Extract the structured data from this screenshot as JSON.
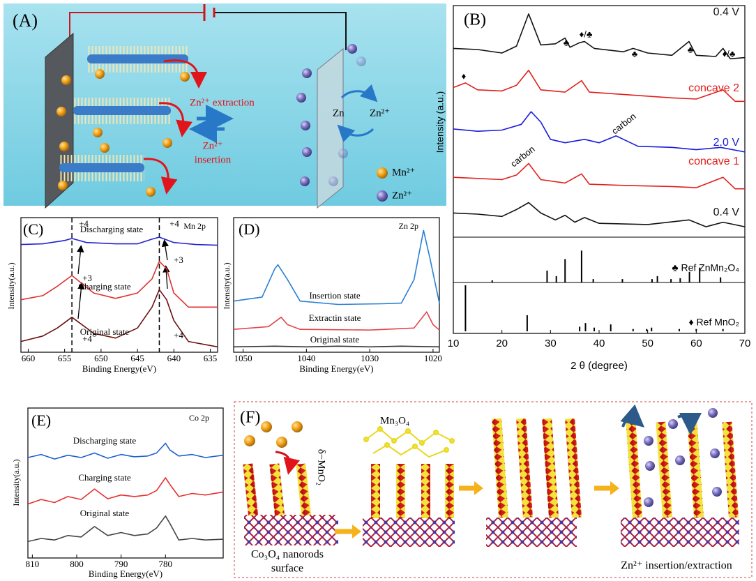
{
  "figure": {
    "panel_a": {
      "label": "(A)",
      "extraction": "Zn²⁺ extraction",
      "insertion_ion": "Zn²⁺",
      "insertion": "insertion",
      "zn": "Zn",
      "zn_ion": "Zn²⁺",
      "legend": [
        "Mn²⁺",
        "Zn²⁺"
      ]
    },
    "panel_f": {
      "label": "(F)",
      "delta": "δ−MnO₂",
      "mn3o4": "Mn₃O₄",
      "substrate": [
        "Co₃O₄ nanorods",
        "surface"
      ],
      "process": "Zn²⁺ insertion/extraction"
    }
  },
  "chart_data": [
    {
      "type": "line",
      "label": "(B)",
      "xlabel": "2 θ (degree)",
      "ylabel": "Intensity (a.u.)",
      "xlim": [
        10,
        70
      ],
      "xticks": [
        10,
        20,
        30,
        40,
        50,
        60,
        70
      ],
      "ylim": [
        0,
        10
      ],
      "series": [
        {
          "name": "0.4 V",
          "color": "#111111",
          "x": [
            10,
            15,
            20,
            23,
            25.5,
            28,
            31,
            33,
            34,
            36,
            37,
            39,
            45,
            47,
            50,
            55,
            58.5,
            60,
            64,
            65.5,
            67,
            70
          ],
          "values": [
            8.2,
            8.15,
            8.0,
            8.3,
            9.7,
            8.35,
            8.4,
            8.65,
            8.25,
            8.45,
            8.5,
            8.2,
            8.05,
            8.2,
            8.0,
            7.9,
            8.5,
            7.9,
            7.85,
            8.2,
            7.75,
            7.8
          ]
        },
        {
          "name": "concave 2",
          "color": "#e0201b",
          "x": [
            10,
            12.5,
            15,
            20,
            23,
            25.5,
            28,
            33,
            36.4,
            38,
            45,
            55,
            60,
            65.5,
            68,
            70
          ],
          "values": [
            6.5,
            6.7,
            6.4,
            6.35,
            6.6,
            7.25,
            6.4,
            6.3,
            6.8,
            6.3,
            6.2,
            6.05,
            6.0,
            6.4,
            5.9,
            5.9
          ]
        },
        {
          "name": "2.0 V",
          "color": "#1a1adb",
          "x": [
            10,
            15,
            20,
            24,
            26,
            28,
            30,
            33,
            37,
            40,
            43.5,
            48,
            55,
            60,
            65,
            70
          ],
          "values": [
            4.7,
            4.6,
            4.65,
            4.9,
            5.45,
            5.0,
            4.25,
            4.1,
            4.25,
            4.1,
            4.4,
            3.95,
            3.9,
            3.8,
            3.9,
            3.7
          ]
        },
        {
          "name": "concave 1",
          "color": "#e0201b",
          "x": [
            10,
            15,
            20,
            23,
            25.5,
            28,
            33,
            36.4,
            38,
            45,
            55,
            60,
            65.5,
            68,
            70
          ],
          "values": [
            2.6,
            2.55,
            2.5,
            2.7,
            3.2,
            2.5,
            2.35,
            2.75,
            2.3,
            2.25,
            2.2,
            2.15,
            2.6,
            2.1,
            2.1
          ]
        },
        {
          "name": "0.4 V",
          "color": "#111111",
          "x": [
            10,
            15,
            20,
            23,
            25.5,
            28,
            31,
            33,
            35,
            37,
            40,
            50,
            58.5,
            62,
            65.5,
            70
          ],
          "values": [
            1.05,
            1.0,
            0.9,
            1.2,
            1.5,
            1.05,
            0.75,
            0.95,
            0.65,
            0.85,
            0.6,
            0.55,
            0.75,
            0.45,
            0.65,
            0.45
          ]
        }
      ],
      "annotations": [
        "♣",
        "♦/♣",
        "♣",
        "♣",
        "♦/♣",
        "♦",
        "carbon",
        "carbon"
      ],
      "reference_ylim": [
        0,
        100
      ],
      "references": [
        {
          "name": "♣ Ref ZnMn₂O₄",
          "color": "#000000",
          "x": [
            18,
            29.3,
            31.2,
            33,
            36.4,
            38.8,
            44.8,
            50.9,
            52,
            54.8,
            56.7,
            58.6,
            60.7,
            65
          ],
          "values": [
            5,
            28,
            15,
            55,
            75,
            8,
            8,
            8,
            15,
            8,
            10,
            25,
            35,
            12
          ]
        },
        {
          "name": "♦ Ref MnO₂",
          "color": "#000000",
          "x": [
            12.5,
            25.2,
            36,
            37.2,
            39,
            42.4,
            47,
            49.8,
            50.8,
            56.5,
            60,
            65.5
          ],
          "values": [
            100,
            35,
            10,
            18,
            8,
            15,
            5,
            5,
            8,
            5,
            5,
            5
          ]
        }
      ]
    },
    {
      "type": "line",
      "label": "(C)",
      "title": "Mn 2p",
      "xlabel": "Binding Energy(eV)",
      "ylabel": "Intensity(a.u.)",
      "xlim": [
        661,
        634
      ],
      "xticks": [
        660,
        655,
        650,
        645,
        640,
        635
      ],
      "ylim": [
        0,
        10
      ],
      "markers": [
        654,
        642
      ],
      "series": [
        {
          "name": "Discharging state",
          "color": "#2222cc",
          "x": [
            661,
            658,
            655,
            654,
            652,
            648,
            645,
            643,
            642,
            640,
            637,
            634
          ],
          "values": [
            8.0,
            8.05,
            8.3,
            8.45,
            8.15,
            8.05,
            8.05,
            8.4,
            8.55,
            8.15,
            8.0,
            7.95
          ]
        },
        {
          "name": "Charging state",
          "color": "#e03030",
          "x": [
            661,
            658,
            656,
            654,
            651,
            648,
            645,
            643,
            642,
            641,
            640,
            638,
            634
          ],
          "values": [
            3.9,
            4.2,
            4.9,
            5.7,
            4.4,
            4.0,
            4.4,
            5.45,
            6.75,
            6.2,
            4.4,
            3.35,
            3.35
          ]
        },
        {
          "name": "Original state",
          "color": "#6b1010",
          "x": [
            661,
            658,
            656,
            654,
            651,
            648,
            645,
            643,
            642,
            641,
            640,
            638,
            634
          ],
          "values": [
            0.8,
            1.2,
            1.8,
            2.6,
            1.4,
            1.05,
            1.8,
            3.35,
            4.65,
            3.9,
            2.35,
            0.8,
            0.4
          ]
        }
      ],
      "annotations": [
        "+4",
        "+4",
        "+3",
        "+3",
        "+4",
        "+4"
      ]
    },
    {
      "type": "line",
      "label": "(D)",
      "title": "Zn 2p",
      "xlabel": "Binding Energy(eV)",
      "ylabel": "Intensity(a.u.)",
      "xlim": [
        1051.5,
        1019
      ],
      "xticks": [
        1050,
        1040,
        1030,
        1020
      ],
      "ylim": [
        0,
        10
      ],
      "series": [
        {
          "name": "Insertion state",
          "color": "#2a7fd4",
          "x": [
            1051.5,
            1047,
            1045,
            1044.5,
            1043,
            1041,
            1035,
            1028,
            1025,
            1023,
            1021.5,
            1020.5,
            1019
          ],
          "values": [
            3.8,
            4.1,
            6.2,
            6.5,
            5.4,
            3.8,
            3.55,
            3.6,
            3.65,
            5.4,
            9.05,
            7.0,
            3.65
          ]
        },
        {
          "name": "Extractin state",
          "color": "#e0474c",
          "x": [
            1051.5,
            1046,
            1044,
            1043,
            1041,
            1030,
            1023,
            1021,
            1020,
            1019
          ],
          "values": [
            1.7,
            1.9,
            2.6,
            2.05,
            1.7,
            1.65,
            1.8,
            3.0,
            2.05,
            1.65
          ]
        },
        {
          "name": "Original state",
          "color": "#333333",
          "x": [
            1051.5,
            1045,
            1040,
            1035,
            1030,
            1025,
            1019
          ],
          "values": [
            0.4,
            0.45,
            0.4,
            0.45,
            0.4,
            0.45,
            0.4
          ]
        }
      ]
    },
    {
      "type": "line",
      "label": "(E)",
      "title": "Co 2p",
      "xlabel": "Binding Energy(eV)",
      "ylabel": "Intensity(a.u.)",
      "xlim": [
        811,
        767
      ],
      "xticks": [
        810,
        800,
        790,
        780
      ],
      "ylim": [
        0,
        10
      ],
      "series": [
        {
          "name": "Discharging state",
          "color": "#1f5fd0",
          "x": [
            811,
            808,
            805,
            802,
            799,
            796,
            793,
            790,
            787,
            784,
            782,
            780,
            779,
            777,
            774,
            771,
            767
          ],
          "values": [
            6.7,
            6.9,
            6.6,
            6.85,
            6.7,
            7.0,
            6.65,
            6.9,
            6.75,
            6.8,
            7.0,
            7.65,
            7.2,
            6.8,
            6.9,
            6.7,
            6.85
          ]
        },
        {
          "name": "Charging state",
          "color": "#e63030",
          "x": [
            811,
            808,
            805,
            802,
            799,
            796,
            793,
            790,
            787,
            784,
            782,
            780,
            779,
            777,
            774,
            771,
            767
          ],
          "values": [
            3.6,
            3.9,
            3.7,
            4.1,
            3.9,
            4.6,
            3.95,
            4.2,
            4.1,
            4.2,
            4.5,
            5.35,
            4.9,
            4.1,
            4.3,
            4.2,
            4.4
          ]
        },
        {
          "name": "Original state",
          "color": "#444444",
          "x": [
            811,
            808,
            805,
            802,
            799,
            796,
            793,
            790,
            787,
            784,
            782,
            780,
            779,
            777,
            774,
            771,
            767
          ],
          "values": [
            1.1,
            1.3,
            1.2,
            1.5,
            1.4,
            2.1,
            1.5,
            1.7,
            1.5,
            1.6,
            2.0,
            2.8,
            2.3,
            1.2,
            1.3,
            1.2,
            1.25
          ]
        }
      ]
    }
  ]
}
